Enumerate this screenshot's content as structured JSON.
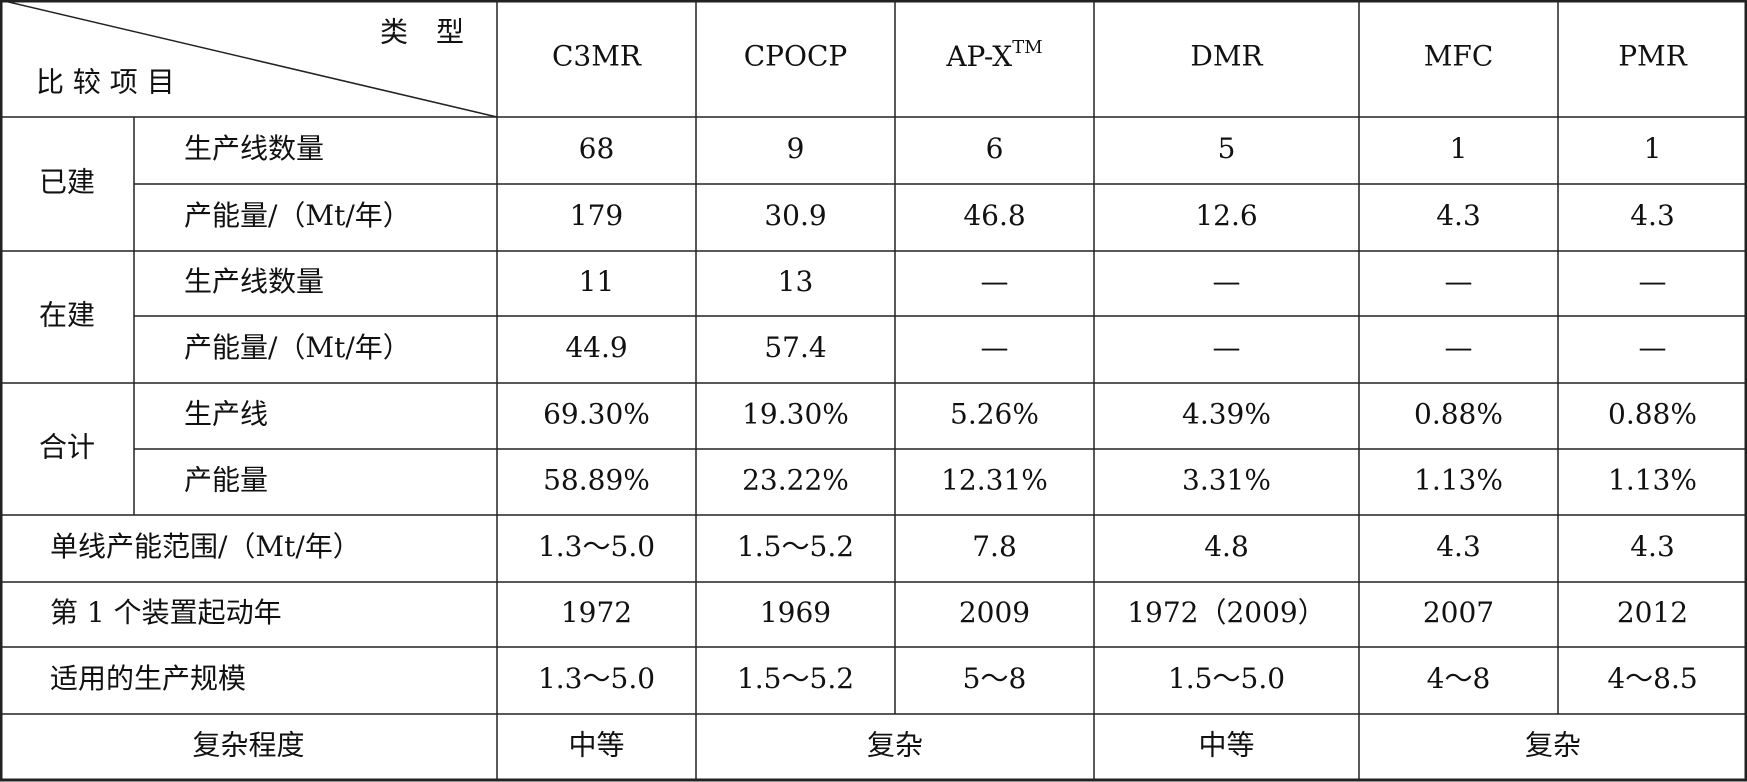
{
  "header": {
    "type_label": "类　型",
    "item_label": "比 较 项 目",
    "columns": [
      "C3MR",
      "CPOCP",
      {
        "base": "AP-X",
        "sup": "TM"
      },
      "DMR",
      "MFC",
      "PMR"
    ]
  },
  "groups": [
    {
      "label": "已建",
      "rows": [
        {
          "item": "生产线数量",
          "cells": [
            "68",
            "9",
            "6",
            "5",
            "1",
            "1"
          ]
        },
        {
          "item": "产能量/（Mt/年）",
          "cells": [
            "179",
            "30.9",
            "46.8",
            "12.6",
            "4.3",
            "4.3"
          ]
        }
      ]
    },
    {
      "label": "在建",
      "rows": [
        {
          "item": "生产线数量",
          "cells": [
            "11",
            "13",
            "—",
            "—",
            "—",
            "—"
          ]
        },
        {
          "item": "产能量/（Mt/年）",
          "cells": [
            "44.9",
            "57.4",
            "—",
            "—",
            "—",
            "—"
          ]
        }
      ]
    },
    {
      "label": "合计",
      "rows": [
        {
          "item": "生产线",
          "cells": [
            "69.30%",
            "19.30%",
            "5.26%",
            "4.39%",
            "0.88%",
            "0.88%"
          ]
        },
        {
          "item": "产能量",
          "cells": [
            "58.89%",
            "23.22%",
            "12.31%",
            "3.31%",
            "1.13%",
            "1.13%"
          ]
        }
      ]
    }
  ],
  "single_rows": [
    {
      "item": "单线产能范围/（Mt/年）",
      "cells": [
        "1.3～5.0",
        "1.5～5.2",
        "7.8",
        "4.8",
        "4.3",
        "4.3"
      ]
    },
    {
      "item": "第 1 个装置起动年",
      "cells": [
        "1972",
        "1969",
        "2009",
        "1972（2009）",
        "2007",
        "2012"
      ]
    },
    {
      "item": "适用的生产规模",
      "cells": [
        "1.3～5.0",
        "1.5～5.2",
        "5～8",
        "1.5～5.0",
        "4～8",
        "4～8.5"
      ]
    }
  ],
  "complexity": {
    "item": "复杂程度",
    "cells": [
      "中等",
      "复杂",
      "中等",
      "复杂"
    ]
  }
}
